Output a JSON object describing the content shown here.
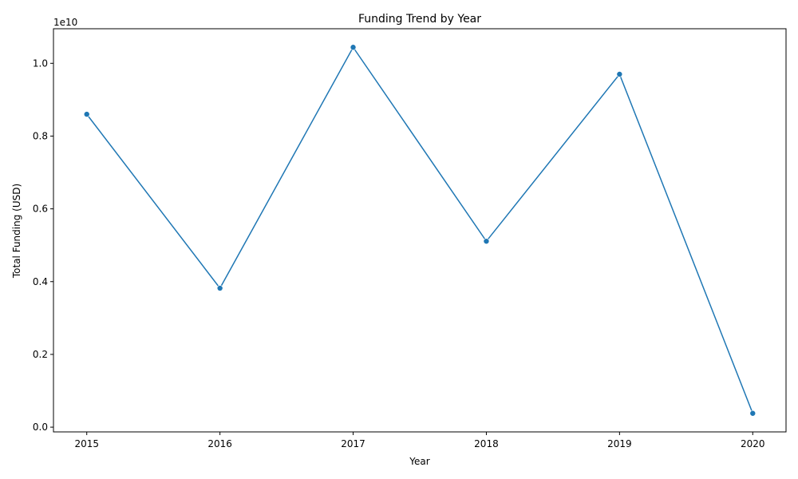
{
  "chart_data": {
    "type": "line",
    "title": "Funding Trend by Year",
    "xlabel": "Year",
    "ylabel": "Total Funding (USD)",
    "y_offset_label": "1e10",
    "x": [
      2015,
      2016,
      2017,
      2018,
      2019,
      2020
    ],
    "x_tick_labels": [
      "2015",
      "2016",
      "2017",
      "2018",
      "2019",
      "2020"
    ],
    "series": [
      {
        "values": [
          8600000000,
          3820000000,
          10440000000,
          5110000000,
          9700000000,
          380000000
        ]
      }
    ],
    "y_ticks": [
      0,
      2000000000,
      4000000000,
      6000000000,
      8000000000,
      10000000000
    ],
    "y_tick_labels": [
      "0.0",
      "0.2",
      "0.4",
      "0.6",
      "0.8",
      "1.0"
    ],
    "xlim": [
      2014.75,
      2020.25
    ],
    "ylim": [
      -130000000,
      10950000000
    ],
    "grid": false,
    "legend": "none",
    "line_color": "#1f77b4"
  }
}
